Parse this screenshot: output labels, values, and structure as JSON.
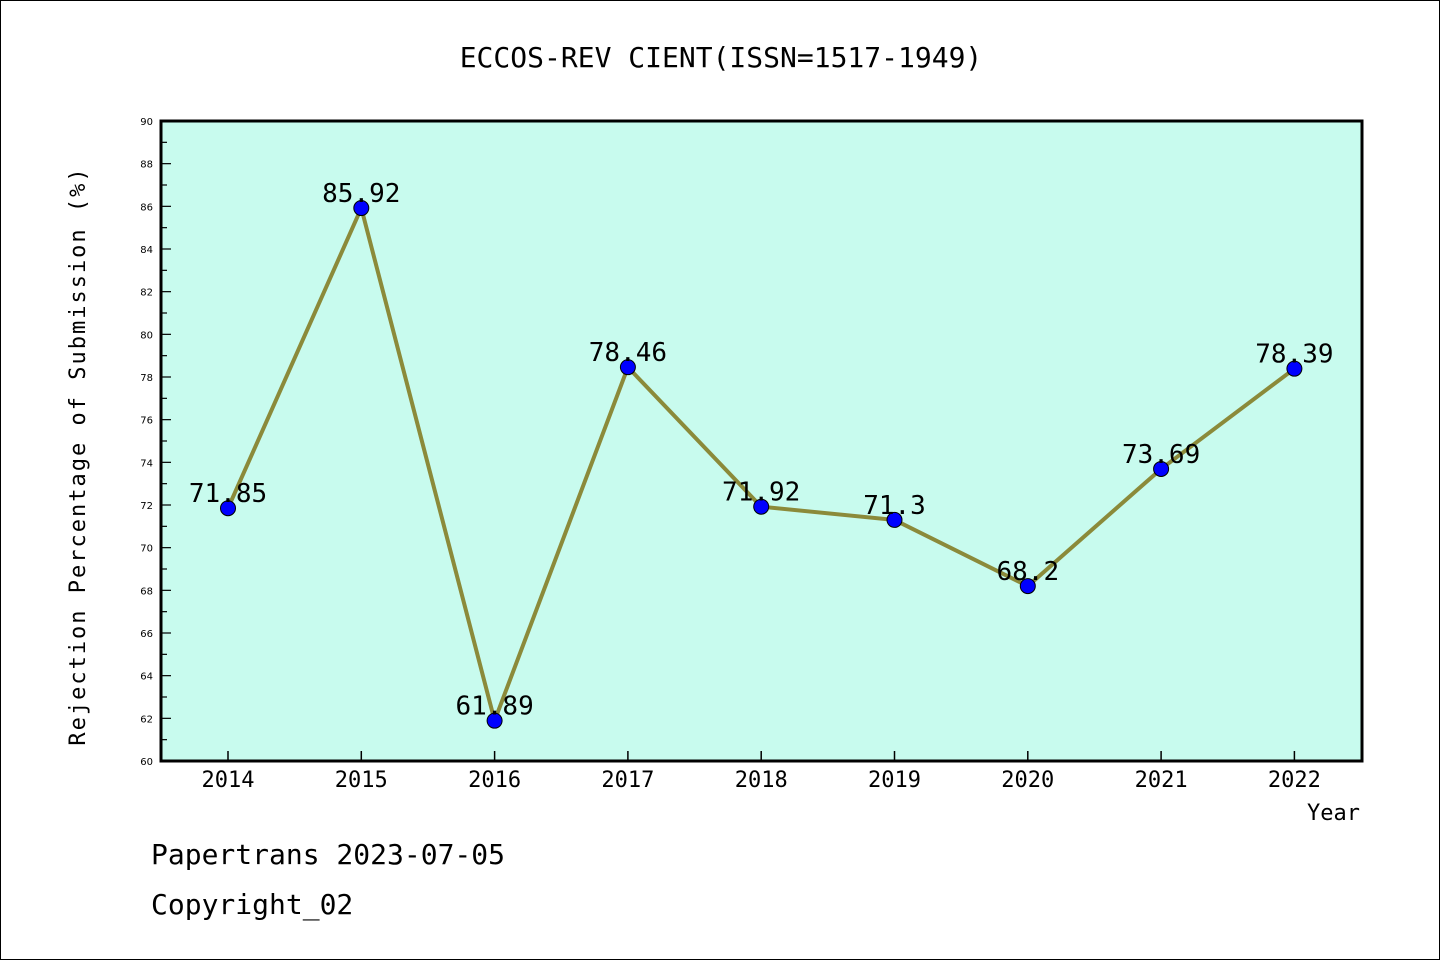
{
  "chart_data": {
    "type": "line",
    "title": "ECCOS-REV CIENT(ISSN=1517-1949)",
    "xlabel": "Year",
    "ylabel": "Rejection Percentage of Submission (%)",
    "categories": [
      "2014",
      "2015",
      "2016",
      "2017",
      "2018",
      "2019",
      "2020",
      "2021",
      "2022"
    ],
    "values": [
      71.85,
      85.92,
      61.89,
      78.46,
      71.92,
      71.3,
      68.2,
      73.69,
      78.39
    ],
    "data_labels": [
      "71.85",
      "85.92",
      "61.89",
      "78.46",
      "71.92",
      "71.3",
      "68.2",
      "73.69",
      "78.39"
    ],
    "ylim": [
      60,
      90
    ],
    "yticks": [
      "60",
      "62",
      "64",
      "66",
      "68",
      "70",
      "72",
      "74",
      "76",
      "78",
      "80",
      "82",
      "84",
      "86",
      "88",
      "90"
    ],
    "grid": false,
    "legend": "none",
    "colors": {
      "plot_background": "#c8fbee",
      "line": "#8b8a3a",
      "marker": "#0000ff"
    }
  },
  "footer": {
    "line1": "Papertrans 2023-07-05",
    "line2": "Copyright_02"
  }
}
